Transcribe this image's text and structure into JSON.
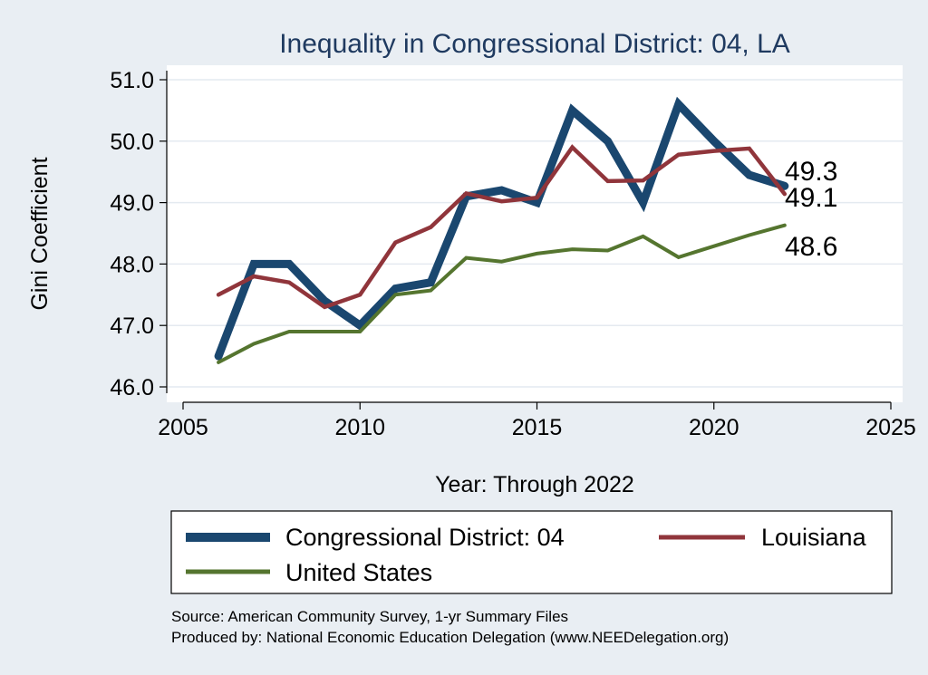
{
  "chart_data": {
    "type": "line",
    "title": "Inequality in Congressional District:  04, LA",
    "xlabel": "Year: Through 2022",
    "ylabel": "Gini Coefficient",
    "xlim": [
      2005,
      2025
    ],
    "ylim": [
      46.0,
      51.0
    ],
    "x_ticks": [
      2005,
      2010,
      2015,
      2020,
      2025
    ],
    "y_ticks": [
      46.0,
      47.0,
      48.0,
      49.0,
      50.0,
      51.0
    ],
    "y_tick_labels": [
      "46.0",
      "47.0",
      "48.0",
      "49.0",
      "50.0",
      "51.0"
    ],
    "grid": "horizontal",
    "legend_position": "bottom",
    "x": [
      2006,
      2007,
      2008,
      2009,
      2010,
      2011,
      2012,
      2013,
      2014,
      2015,
      2016,
      2017,
      2018,
      2019,
      2020,
      2021,
      2022
    ],
    "series": [
      {
        "name": "Congressional District:  04",
        "color": "#1a476f",
        "values": [
          46.5,
          48.0,
          48.0,
          47.4,
          47.0,
          47.6,
          47.7,
          49.1,
          49.2,
          49.0,
          50.5,
          50.0,
          49.0,
          50.6,
          50.0,
          49.45,
          49.27
        ],
        "end_label": "49.3"
      },
      {
        "name": "Louisiana",
        "color": "#90353b",
        "values": [
          47.5,
          47.8,
          47.7,
          47.3,
          47.5,
          48.35,
          48.6,
          49.15,
          49.02,
          49.08,
          49.9,
          49.35,
          49.36,
          49.78,
          49.84,
          49.88,
          49.14
        ],
        "end_label": "49.1"
      },
      {
        "name": "United States",
        "color": "#55752f",
        "values": [
          46.4,
          46.7,
          46.9,
          46.9,
          46.9,
          47.5,
          47.57,
          48.1,
          48.04,
          48.17,
          48.24,
          48.22,
          48.45,
          48.11,
          48.29,
          48.47,
          48.63
        ],
        "end_label": "48.6"
      }
    ]
  },
  "source": {
    "line1": "Source: American Community Survey, 1-yr Summary Files",
    "line2": "Produced by: National Economic Education Delegation (www.NEEDelegation.org)"
  }
}
